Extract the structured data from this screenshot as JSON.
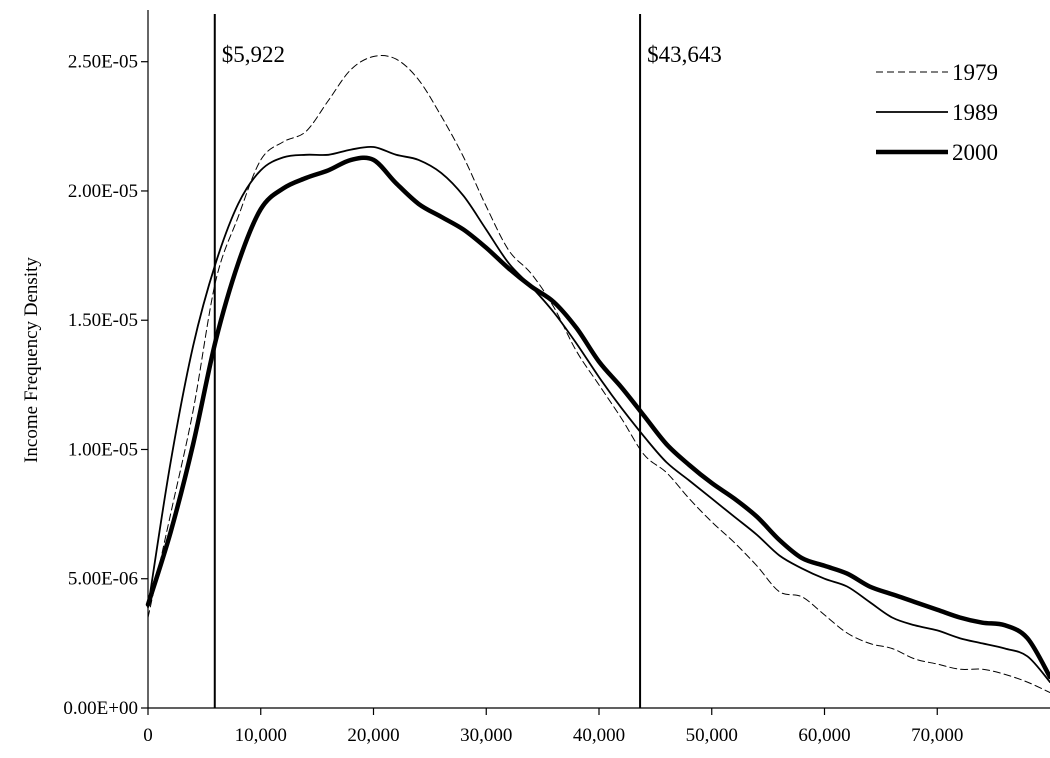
{
  "chart_data": {
    "type": "line",
    "title": "",
    "xlabel": "",
    "ylabel": "Income Frequency Density",
    "xlim": [
      0,
      80000
    ],
    "ylim": [
      0,
      2.7e-05
    ],
    "grid": false,
    "legend_position": "top-right",
    "x_ticks": [
      {
        "value": 0,
        "label": "0"
      },
      {
        "value": 10000,
        "label": "10,000"
      },
      {
        "value": 20000,
        "label": "20,000"
      },
      {
        "value": 30000,
        "label": "30,000"
      },
      {
        "value": 40000,
        "label": "40,000"
      },
      {
        "value": 50000,
        "label": "50,000"
      },
      {
        "value": 60000,
        "label": "60,000"
      },
      {
        "value": 70000,
        "label": "70,000"
      }
    ],
    "y_ticks": [
      {
        "value": 0,
        "label": "0.00E+00"
      },
      {
        "value": 5e-06,
        "label": "5.00E-06"
      },
      {
        "value": 1e-05,
        "label": "1.00E-05"
      },
      {
        "value": 1.5e-05,
        "label": "1.50E-05"
      },
      {
        "value": 2e-05,
        "label": "2.00E-05"
      },
      {
        "value": 2.5e-05,
        "label": "2.50E-05"
      }
    ],
    "annotations": [
      {
        "x": 5922,
        "label": "$5,922"
      },
      {
        "x": 43643,
        "label": "$43,643"
      }
    ],
    "series": [
      {
        "name": "1979",
        "style": "dashed-thin",
        "x": [
          0,
          2000,
          4000,
          6000,
          8000,
          10000,
          12000,
          14000,
          16000,
          18000,
          20000,
          22000,
          24000,
          26000,
          28000,
          30000,
          32000,
          34000,
          36000,
          38000,
          40000,
          42000,
          44000,
          46000,
          48000,
          50000,
          52000,
          54000,
          56000,
          58000,
          60000,
          62000,
          64000,
          66000,
          68000,
          70000,
          72000,
          74000,
          76000,
          78000,
          80000
        ],
        "values": [
          3.5e-06,
          7.5e-06,
          1.15e-05,
          1.65e-05,
          1.9e-05,
          2.12e-05,
          2.19e-05,
          2.23e-05,
          2.35e-05,
          2.47e-05,
          2.52e-05,
          2.51e-05,
          2.43e-05,
          2.29e-05,
          2.13e-05,
          1.94e-05,
          1.77e-05,
          1.68e-05,
          1.55e-05,
          1.38e-05,
          1.25e-05,
          1.12e-05,
          9.8e-06,
          9.1e-06,
          8.1e-06,
          7.2e-06,
          6.4e-06,
          5.5e-06,
          4.5e-06,
          4.3e-06,
          3.6e-06,
          2.9e-06,
          2.5e-06,
          2.3e-06,
          1.9e-06,
          1.7e-06,
          1.5e-06,
          1.5e-06,
          1.3e-06,
          1e-06,
          6e-07
        ]
      },
      {
        "name": "1989",
        "style": "solid-thin",
        "x": [
          0,
          2000,
          4000,
          6000,
          8000,
          10000,
          12000,
          14000,
          16000,
          18000,
          20000,
          22000,
          24000,
          26000,
          28000,
          30000,
          32000,
          34000,
          36000,
          38000,
          40000,
          42000,
          44000,
          46000,
          48000,
          50000,
          52000,
          54000,
          56000,
          58000,
          60000,
          62000,
          64000,
          66000,
          68000,
          70000,
          72000,
          74000,
          76000,
          78000,
          80000
        ],
        "values": [
          3.9e-06,
          9.5e-06,
          1.4e-05,
          1.72e-05,
          1.95e-05,
          2.08e-05,
          2.13e-05,
          2.14e-05,
          2.14e-05,
          2.16e-05,
          2.17e-05,
          2.14e-05,
          2.12e-05,
          2.07e-05,
          1.98e-05,
          1.85e-05,
          1.72e-05,
          1.63e-05,
          1.53e-05,
          1.41e-05,
          1.28e-05,
          1.16e-05,
          1.05e-05,
          9.5e-06,
          8.8e-06,
          8.1e-06,
          7.4e-06,
          6.7e-06,
          5.9e-06,
          5.4e-06,
          5e-06,
          4.7e-06,
          4.1e-06,
          3.5e-06,
          3.2e-06,
          3e-06,
          2.7e-06,
          2.5e-06,
          2.3e-06,
          2e-06,
          1e-06
        ]
      },
      {
        "name": "2000",
        "style": "solid-thick",
        "x": [
          0,
          2000,
          4000,
          6000,
          8000,
          10000,
          12000,
          14000,
          16000,
          18000,
          20000,
          22000,
          24000,
          26000,
          28000,
          30000,
          32000,
          34000,
          36000,
          38000,
          40000,
          42000,
          44000,
          46000,
          48000,
          50000,
          52000,
          54000,
          56000,
          58000,
          60000,
          62000,
          64000,
          66000,
          68000,
          70000,
          72000,
          74000,
          76000,
          78000,
          80000
        ],
        "values": [
          4e-06,
          6.8e-06,
          1.02e-05,
          1.42e-05,
          1.72e-05,
          1.93e-05,
          2.01e-05,
          2.05e-05,
          2.08e-05,
          2.12e-05,
          2.12e-05,
          2.03e-05,
          1.95e-05,
          1.9e-05,
          1.85e-05,
          1.78e-05,
          1.7e-05,
          1.63e-05,
          1.57e-05,
          1.47e-05,
          1.34e-05,
          1.24e-05,
          1.13e-05,
          1.02e-05,
          9.4e-06,
          8.7e-06,
          8.1e-06,
          7.4e-06,
          6.5e-06,
          5.8e-06,
          5.5e-06,
          5.2e-06,
          4.7e-06,
          4.4e-06,
          4.1e-06,
          3.8e-06,
          3.5e-06,
          3.3e-06,
          3.2e-06,
          2.7e-06,
          1.2e-06
        ]
      }
    ]
  }
}
